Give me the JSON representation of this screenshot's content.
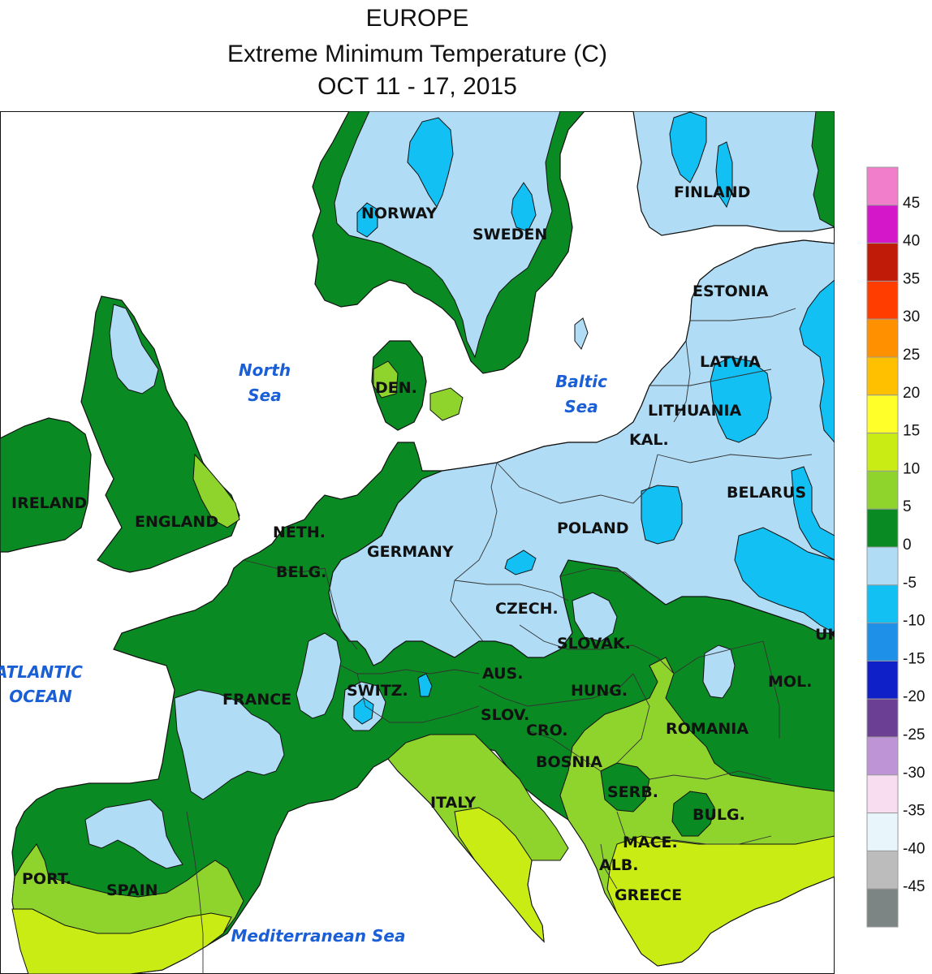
{
  "title": {
    "line1": "EUROPE",
    "line2": "Extreme Minimum Temperature (C)",
    "line3": "OCT 11 - 17, 2015"
  },
  "colors": {
    "c0_to_m5": "#b0dcf5",
    "c_m5_to_m10": "#12c0f4",
    "c_m10_to_m15": "#1e90e8",
    "c0_to_5": "#0a8a22",
    "c5_to_10": "#8fd42c",
    "c10_to_15": "#c8ec14",
    "water": "#ffffff",
    "border": "#111111"
  },
  "countries": [
    {
      "id": "norway",
      "label": "NORWAY"
    },
    {
      "id": "sweden",
      "label": "SWEDEN"
    },
    {
      "id": "finland",
      "label": "FINLAND"
    },
    {
      "id": "estonia",
      "label": "ESTONIA"
    },
    {
      "id": "latvia",
      "label": "LATVIA"
    },
    {
      "id": "lithuania",
      "label": "LITHUANIA"
    },
    {
      "id": "kal",
      "label": "KAL."
    },
    {
      "id": "belarus",
      "label": "BELARUS"
    },
    {
      "id": "den",
      "label": "DEN."
    },
    {
      "id": "ireland",
      "label": "IRELAND"
    },
    {
      "id": "england",
      "label": "ENGLAND"
    },
    {
      "id": "neth",
      "label": "NETH."
    },
    {
      "id": "belg",
      "label": "BELG."
    },
    {
      "id": "germany",
      "label": "GERMANY"
    },
    {
      "id": "poland",
      "label": "POLAND"
    },
    {
      "id": "czech",
      "label": "CZECH."
    },
    {
      "id": "slovak",
      "label": "SLOVAK."
    },
    {
      "id": "uk",
      "label": "UK"
    },
    {
      "id": "mol",
      "label": "MOL."
    },
    {
      "id": "france",
      "label": "FRANCE"
    },
    {
      "id": "switz",
      "label": "SWITZ."
    },
    {
      "id": "aus",
      "label": "AUS."
    },
    {
      "id": "hung",
      "label": "HUNG."
    },
    {
      "id": "slov",
      "label": "SLOV."
    },
    {
      "id": "cro",
      "label": "CRO."
    },
    {
      "id": "romania",
      "label": "ROMANIA"
    },
    {
      "id": "bosnia",
      "label": "BOSNIA"
    },
    {
      "id": "serb",
      "label": "SERB."
    },
    {
      "id": "italy",
      "label": "ITALY"
    },
    {
      "id": "bulg",
      "label": "BULG."
    },
    {
      "id": "mace",
      "label": "MACE."
    },
    {
      "id": "alb",
      "label": "ALB."
    },
    {
      "id": "greece",
      "label": "GREECE"
    },
    {
      "id": "port",
      "label": "PORT."
    },
    {
      "id": "spain",
      "label": "SPAIN"
    }
  ],
  "water_bodies": [
    {
      "id": "north-sea",
      "lines": [
        "North",
        "Sea"
      ]
    },
    {
      "id": "baltic-sea",
      "lines": [
        "Baltic",
        "Sea"
      ]
    },
    {
      "id": "atlantic-ocean",
      "lines": [
        "ATLANTIC",
        "OCEAN"
      ]
    },
    {
      "id": "mediterranean-sea",
      "lines": [
        "Mediterranean Sea"
      ]
    }
  ],
  "legend": {
    "bins": [
      {
        "label": "45",
        "color": "#f07ecb"
      },
      {
        "label": "40",
        "color": "#d417c8"
      },
      {
        "label": "35",
        "color": "#c01a08"
      },
      {
        "label": "30",
        "color": "#ff3d00"
      },
      {
        "label": "25",
        "color": "#ff9100"
      },
      {
        "label": "20",
        "color": "#ffc000"
      },
      {
        "label": "15",
        "color": "#ffff2a"
      },
      {
        "label": "10",
        "color": "#c8ec14"
      },
      {
        "label": "5",
        "color": "#8fd42c"
      },
      {
        "label": "0",
        "color": "#0a8a22"
      },
      {
        "label": "-5",
        "color": "#b0dcf5"
      },
      {
        "label": "-10",
        "color": "#12c0f4"
      },
      {
        "label": "-15",
        "color": "#1e90e8"
      },
      {
        "label": "-20",
        "color": "#1020c8"
      },
      {
        "label": "-25",
        "color": "#6a3f94"
      },
      {
        "label": "-30",
        "color": "#bf94d6"
      },
      {
        "label": "-35",
        "color": "#f8dcf0"
      },
      {
        "label": "-40",
        "color": "#e8f6fc"
      },
      {
        "label": "-45",
        "color": "#bcbcbc"
      },
      {
        "label": "",
        "color": "#7d8484"
      }
    ]
  }
}
